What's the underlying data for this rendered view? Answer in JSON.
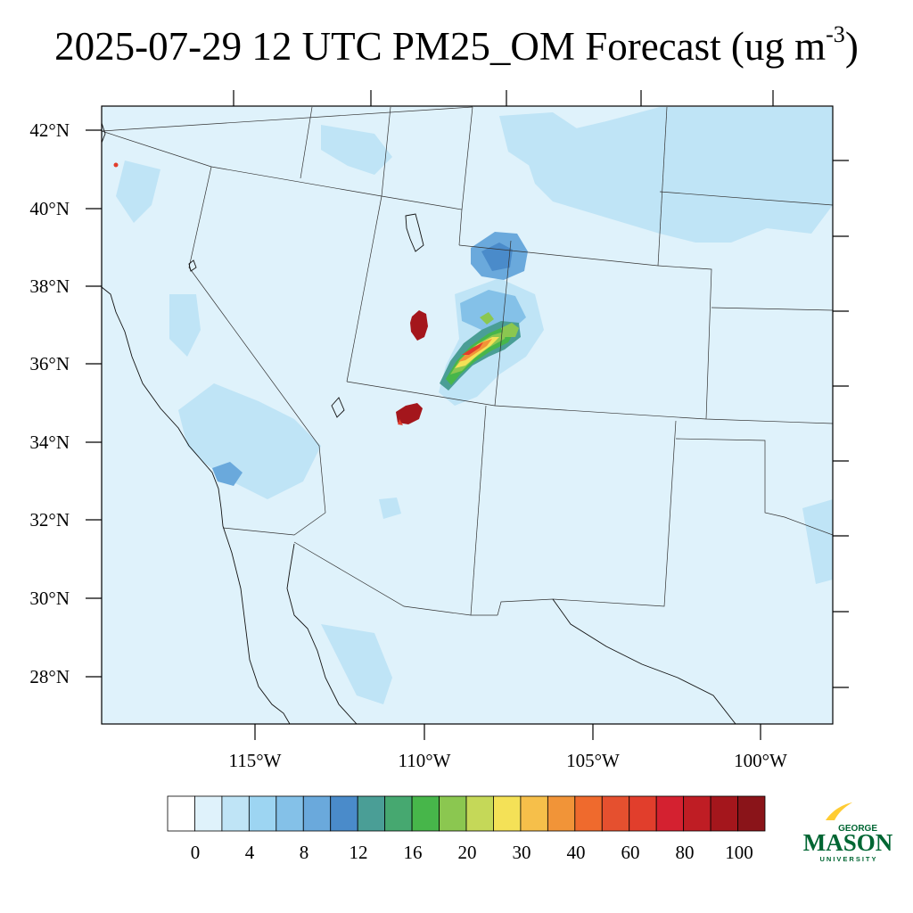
{
  "title": {
    "main": "2025-07-29 12 UTC PM25_OM Forecast (ug m",
    "superscript": "-3",
    "close": ")"
  },
  "map": {
    "lat_labels": [
      "42°N",
      "40°N",
      "38°N",
      "36°N",
      "34°N",
      "32°N",
      "30°N",
      "28°N"
    ],
    "lon_labels": [
      "115°W",
      "110°W",
      "105°W",
      "100°W"
    ],
    "background_color": "#dff2fb",
    "plume_colors": {
      "light_blue": "#bfe4f6",
      "mid_blue": "#6aa9dc",
      "teal": "#4a9e96",
      "green": "#47b64a",
      "light_green": "#8bc750",
      "yellow": "#f4e157",
      "orange": "#f19438",
      "red": "#e13e2c",
      "dark_red": "#a4161c"
    }
  },
  "colorbar": {
    "colors": [
      "#ffffff",
      "#dff2fb",
      "#bfe4f6",
      "#9dd5f2",
      "#84c1e8",
      "#6aa9dc",
      "#4a8bca",
      "#4a9e96",
      "#46a870",
      "#47b64a",
      "#8bc750",
      "#c5d858",
      "#f4e157",
      "#f6bf4a",
      "#f19438",
      "#ef6a2d",
      "#e5502f",
      "#e13e2c",
      "#d42130",
      "#bf1d24",
      "#a4161c",
      "#8a1419"
    ],
    "labels": [
      "0",
      "4",
      "8",
      "12",
      "16",
      "20",
      "30",
      "40",
      "60",
      "80",
      "100"
    ]
  },
  "logo": {
    "line1": "GEORGE",
    "line2": "MASON",
    "line3": "UNIVERSITY",
    "green": "#006633",
    "gold": "#ffcc33"
  }
}
